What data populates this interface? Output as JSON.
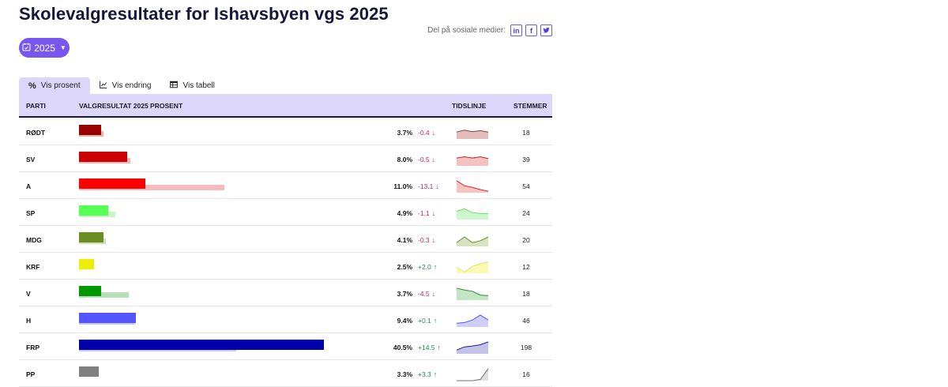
{
  "title": "Skolevalgresultater for Ishavsbyen vgs 2025",
  "share": {
    "label": "Del på sosiale medier:",
    "icons": [
      "linkedin-icon",
      "facebook-icon",
      "twitter-icon"
    ],
    "linkedin": "in",
    "facebook": "f"
  },
  "year_selector": {
    "value": "2025"
  },
  "tabs": [
    {
      "label": "Vis prosent",
      "icon": "percent-icon",
      "active": true
    },
    {
      "label": "Vis endring",
      "icon": "line-chart-icon",
      "active": false
    },
    {
      "label": "Vis tabell",
      "icon": "table-icon",
      "active": false
    }
  ],
  "table": {
    "headers": {
      "party": "PARTI",
      "result": "VALGRESULTAT 2025 PROSENT",
      "timeline": "TIDSLINJE",
      "votes": "STEMMER"
    },
    "rows": [
      {
        "party": "RØDT",
        "pct": "3.7%",
        "value": 3.7,
        "prev": 4.1,
        "change": "-0.4",
        "dir": "down",
        "votes": "18",
        "color": "#990000",
        "prevColor": "#e6b3b3",
        "sparkFill": "#e5bcbc",
        "sparkLine": "#8a3a3a",
        "trend": [
          0.55,
          0.7,
          0.58,
          0.66,
          0.55
        ]
      },
      {
        "party": "SV",
        "pct": "8.0%",
        "value": 8.0,
        "prev": 8.5,
        "change": "-0.5",
        "dir": "down",
        "votes": "39",
        "color": "#cc0000",
        "prevColor": "#f2b8b8",
        "sparkFill": "#f3c1c1",
        "sparkLine": "#c42020",
        "trend": [
          0.62,
          0.72,
          0.62,
          0.72,
          0.58
        ]
      },
      {
        "party": "A",
        "pct": "11.0%",
        "value": 11.0,
        "prev": 24.1,
        "change": "-13.1",
        "dir": "down",
        "votes": "54",
        "color": "#ff0000",
        "prevColor": "#f6bcbc",
        "sparkFill": "#f6c3c3",
        "sparkLine": "#d42a2a",
        "trend": [
          0.95,
          0.55,
          0.42,
          0.25,
          0.12
        ]
      },
      {
        "party": "SP",
        "pct": "4.9%",
        "value": 4.9,
        "prev": 6.0,
        "change": "-1.1",
        "dir": "down",
        "votes": "24",
        "color": "#55ff55",
        "prevColor": "#c8f5c8",
        "sparkFill": "#cdf7cd",
        "sparkLine": "#6bd66b",
        "trend": [
          0.65,
          0.85,
          0.55,
          0.48,
          0.48
        ]
      },
      {
        "party": "MDG",
        "pct": "4.1%",
        "value": 4.1,
        "prev": 4.4,
        "change": "-0.3",
        "dir": "down",
        "votes": "20",
        "color": "#6b8e23",
        "prevColor": "#cfe0b8",
        "sparkFill": "#d6e3c2",
        "sparkLine": "#6b8e23",
        "trend": [
          0.3,
          0.75,
          0.3,
          0.45,
          0.75
        ]
      },
      {
        "party": "KRF",
        "pct": "2.5%",
        "value": 2.5,
        "prev": 0.5,
        "change": "+2.0",
        "dir": "up",
        "votes": "12",
        "color": "#eeee00",
        "prevColor": "#f8f8b0",
        "sparkFill": "#fafab2",
        "sparkLine": "#e0e070",
        "trend": [
          0.45,
          0.1,
          0.55,
          0.75,
          0.9
        ]
      },
      {
        "party": "V",
        "pct": "3.7%",
        "value": 3.7,
        "prev": 8.2,
        "change": "-4.5",
        "dir": "down",
        "votes": "18",
        "color": "#009900",
        "prevColor": "#b8e0b8",
        "sparkFill": "#c2e6c2",
        "sparkLine": "#2e8a2e",
        "trend": [
          0.95,
          0.8,
          0.7,
          0.4,
          0.35
        ]
      },
      {
        "party": "H",
        "pct": "9.4%",
        "value": 9.4,
        "prev": 9.3,
        "change": "+0.1",
        "dir": "up",
        "votes": "46",
        "color": "#5555ff",
        "prevColor": "#c8c8f5",
        "sparkFill": "#cfcff8",
        "sparkLine": "#5555ff",
        "trend": [
          0.3,
          0.35,
          0.55,
          0.95,
          0.55
        ]
      },
      {
        "party": "FRP",
        "pct": "40.5%",
        "value": 40.5,
        "prev": 26.0,
        "change": "+14.5",
        "dir": "up",
        "votes": "198",
        "color": "#0000aa",
        "prevColor": "#c8c8ee",
        "sparkFill": "#c3c3ea",
        "sparkLine": "#1a1a8a",
        "trend": [
          0.3,
          0.55,
          0.62,
          0.72,
          0.95
        ]
      },
      {
        "party": "PP",
        "pct": "3.3%",
        "value": 3.3,
        "prev": 0.0,
        "change": "+3.3",
        "dir": "up",
        "votes": "16",
        "color": "#808080",
        "prevColor": "#d8d8d8",
        "sparkFill": "#e0e0e0",
        "sparkLine": "#707070",
        "trend": [
          0.0,
          0.0,
          0.0,
          0.1,
          0.95
        ]
      }
    ]
  }
}
